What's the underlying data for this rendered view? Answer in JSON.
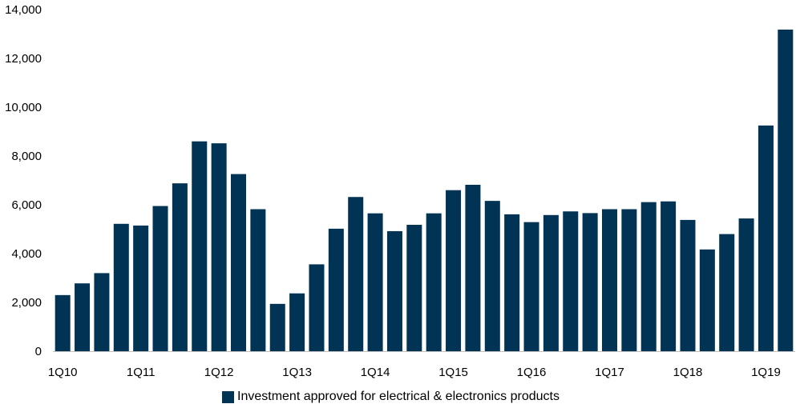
{
  "chart_data": {
    "type": "bar",
    "title": "",
    "xlabel": "",
    "ylabel": "",
    "ylim": [
      0,
      14000
    ],
    "yticks": [
      "0",
      "2,000",
      "4,000",
      "6,000",
      "8,000",
      "10,000",
      "12,000",
      "14,000"
    ],
    "ytick_values": [
      0,
      2000,
      4000,
      6000,
      8000,
      10000,
      12000,
      14000
    ],
    "categories": [
      "1Q10",
      "2Q10",
      "3Q10",
      "4Q10",
      "1Q11",
      "2Q11",
      "3Q11",
      "4Q11",
      "1Q12",
      "2Q12",
      "3Q12",
      "4Q12",
      "1Q13",
      "2Q13",
      "3Q13",
      "4Q13",
      "1Q14",
      "2Q14",
      "3Q14",
      "4Q14",
      "1Q15",
      "2Q15",
      "3Q15",
      "4Q15",
      "1Q16",
      "2Q16",
      "3Q16",
      "4Q16",
      "1Q17",
      "2Q17",
      "3Q17",
      "4Q17",
      "1Q18",
      "2Q18",
      "3Q18",
      "4Q18",
      "1Q19",
      "2Q19"
    ],
    "xtick_labels": [
      "1Q10",
      "1Q11",
      "1Q12",
      "1Q13",
      "1Q14",
      "1Q15",
      "1Q16",
      "1Q17",
      "1Q18",
      "1Q19"
    ],
    "grid": false,
    "legend_position": "bottom",
    "series": [
      {
        "name": "Investment approved for electrical & electronics products",
        "color": "#003354",
        "values": [
          2300,
          2780,
          3200,
          5220,
          5150,
          5950,
          6880,
          8600,
          8520,
          7260,
          5820,
          1940,
          2370,
          3560,
          5020,
          6320,
          5650,
          4920,
          5180,
          5650,
          6600,
          6820,
          6160,
          5610,
          5290,
          5580,
          5730,
          5660,
          5820,
          5820,
          6110,
          6140,
          5380,
          4170,
          4800,
          5440,
          9250,
          13180
        ]
      }
    ]
  }
}
